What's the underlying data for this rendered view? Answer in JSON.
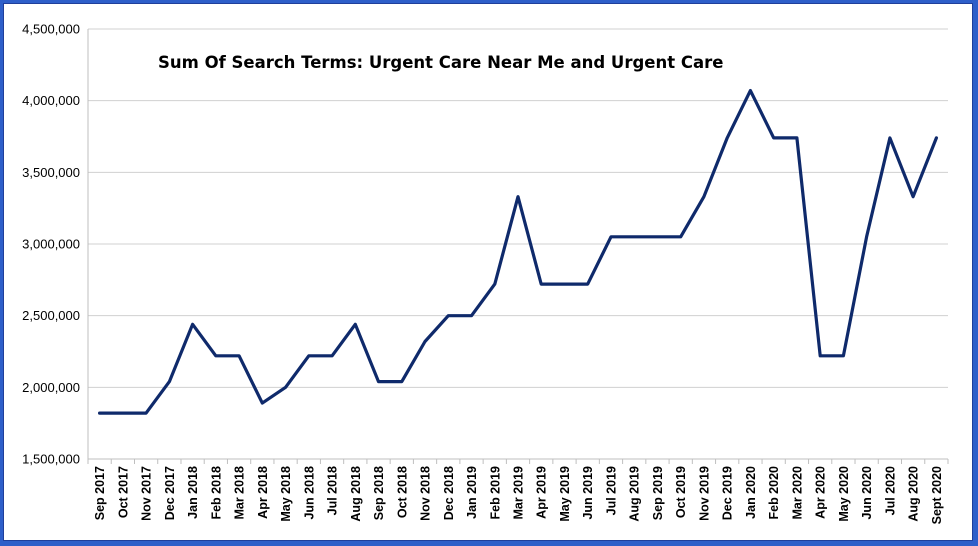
{
  "colors": {
    "page_border": "#2e5fc9",
    "series": "#0f2a6b"
  },
  "chart_data": {
    "type": "line",
    "title": "Sum Of Search Terms: Urgent Care Near Me and Urgent Care",
    "xlabel": "",
    "ylabel": "",
    "ylim": [
      1500000,
      4500000
    ],
    "yticks": [
      1500000,
      2000000,
      2500000,
      3000000,
      3500000,
      4000000,
      4500000
    ],
    "ytick_labels": [
      "1,500,000",
      "2,000,000",
      "2,500,000",
      "3,000,000",
      "3,500,000",
      "4,000,000",
      "4,500,000"
    ],
    "grid": true,
    "legend": "none",
    "categories": [
      "Sep 2017",
      "Oct 2017",
      "Nov 2017",
      "Dec 2017",
      "Jan 2018",
      "Feb 2018",
      "Mar 2018",
      "Apr 2018",
      "May 2018",
      "Jun 2018",
      "Jul 2018",
      "Aug 2018",
      "Sep 2018",
      "Oct 2018",
      "Nov 2018",
      "Dec 2018",
      "Jan 2019",
      "Feb 2019",
      "Mar 2019",
      "Apr 2019",
      "May 2019",
      "Jun 2019",
      "Jul 2019",
      "Aug 2019",
      "Sep 2019",
      "Oct 2019",
      "Nov 2019",
      "Dec 2019",
      "Jan 2020",
      "Feb 2020",
      "Mar 2020",
      "Apr 2020",
      "May 2020",
      "Jun 2020",
      "Jul 2020",
      "Aug 2020",
      "Sept 2020"
    ],
    "series": [
      {
        "values": [
          1820000,
          1820000,
          1820000,
          2040000,
          2440000,
          2220000,
          2220000,
          1890000,
          2000000,
          2220000,
          2220000,
          2440000,
          2040000,
          2040000,
          2320000,
          2500000,
          2500000,
          2720000,
          3330000,
          2720000,
          2720000,
          2720000,
          3050000,
          3050000,
          3050000,
          3050000,
          3330000,
          3740000,
          4070000,
          3740000,
          3740000,
          2220000,
          2220000,
          3050000,
          3740000,
          3330000,
          3740000
        ]
      }
    ]
  }
}
